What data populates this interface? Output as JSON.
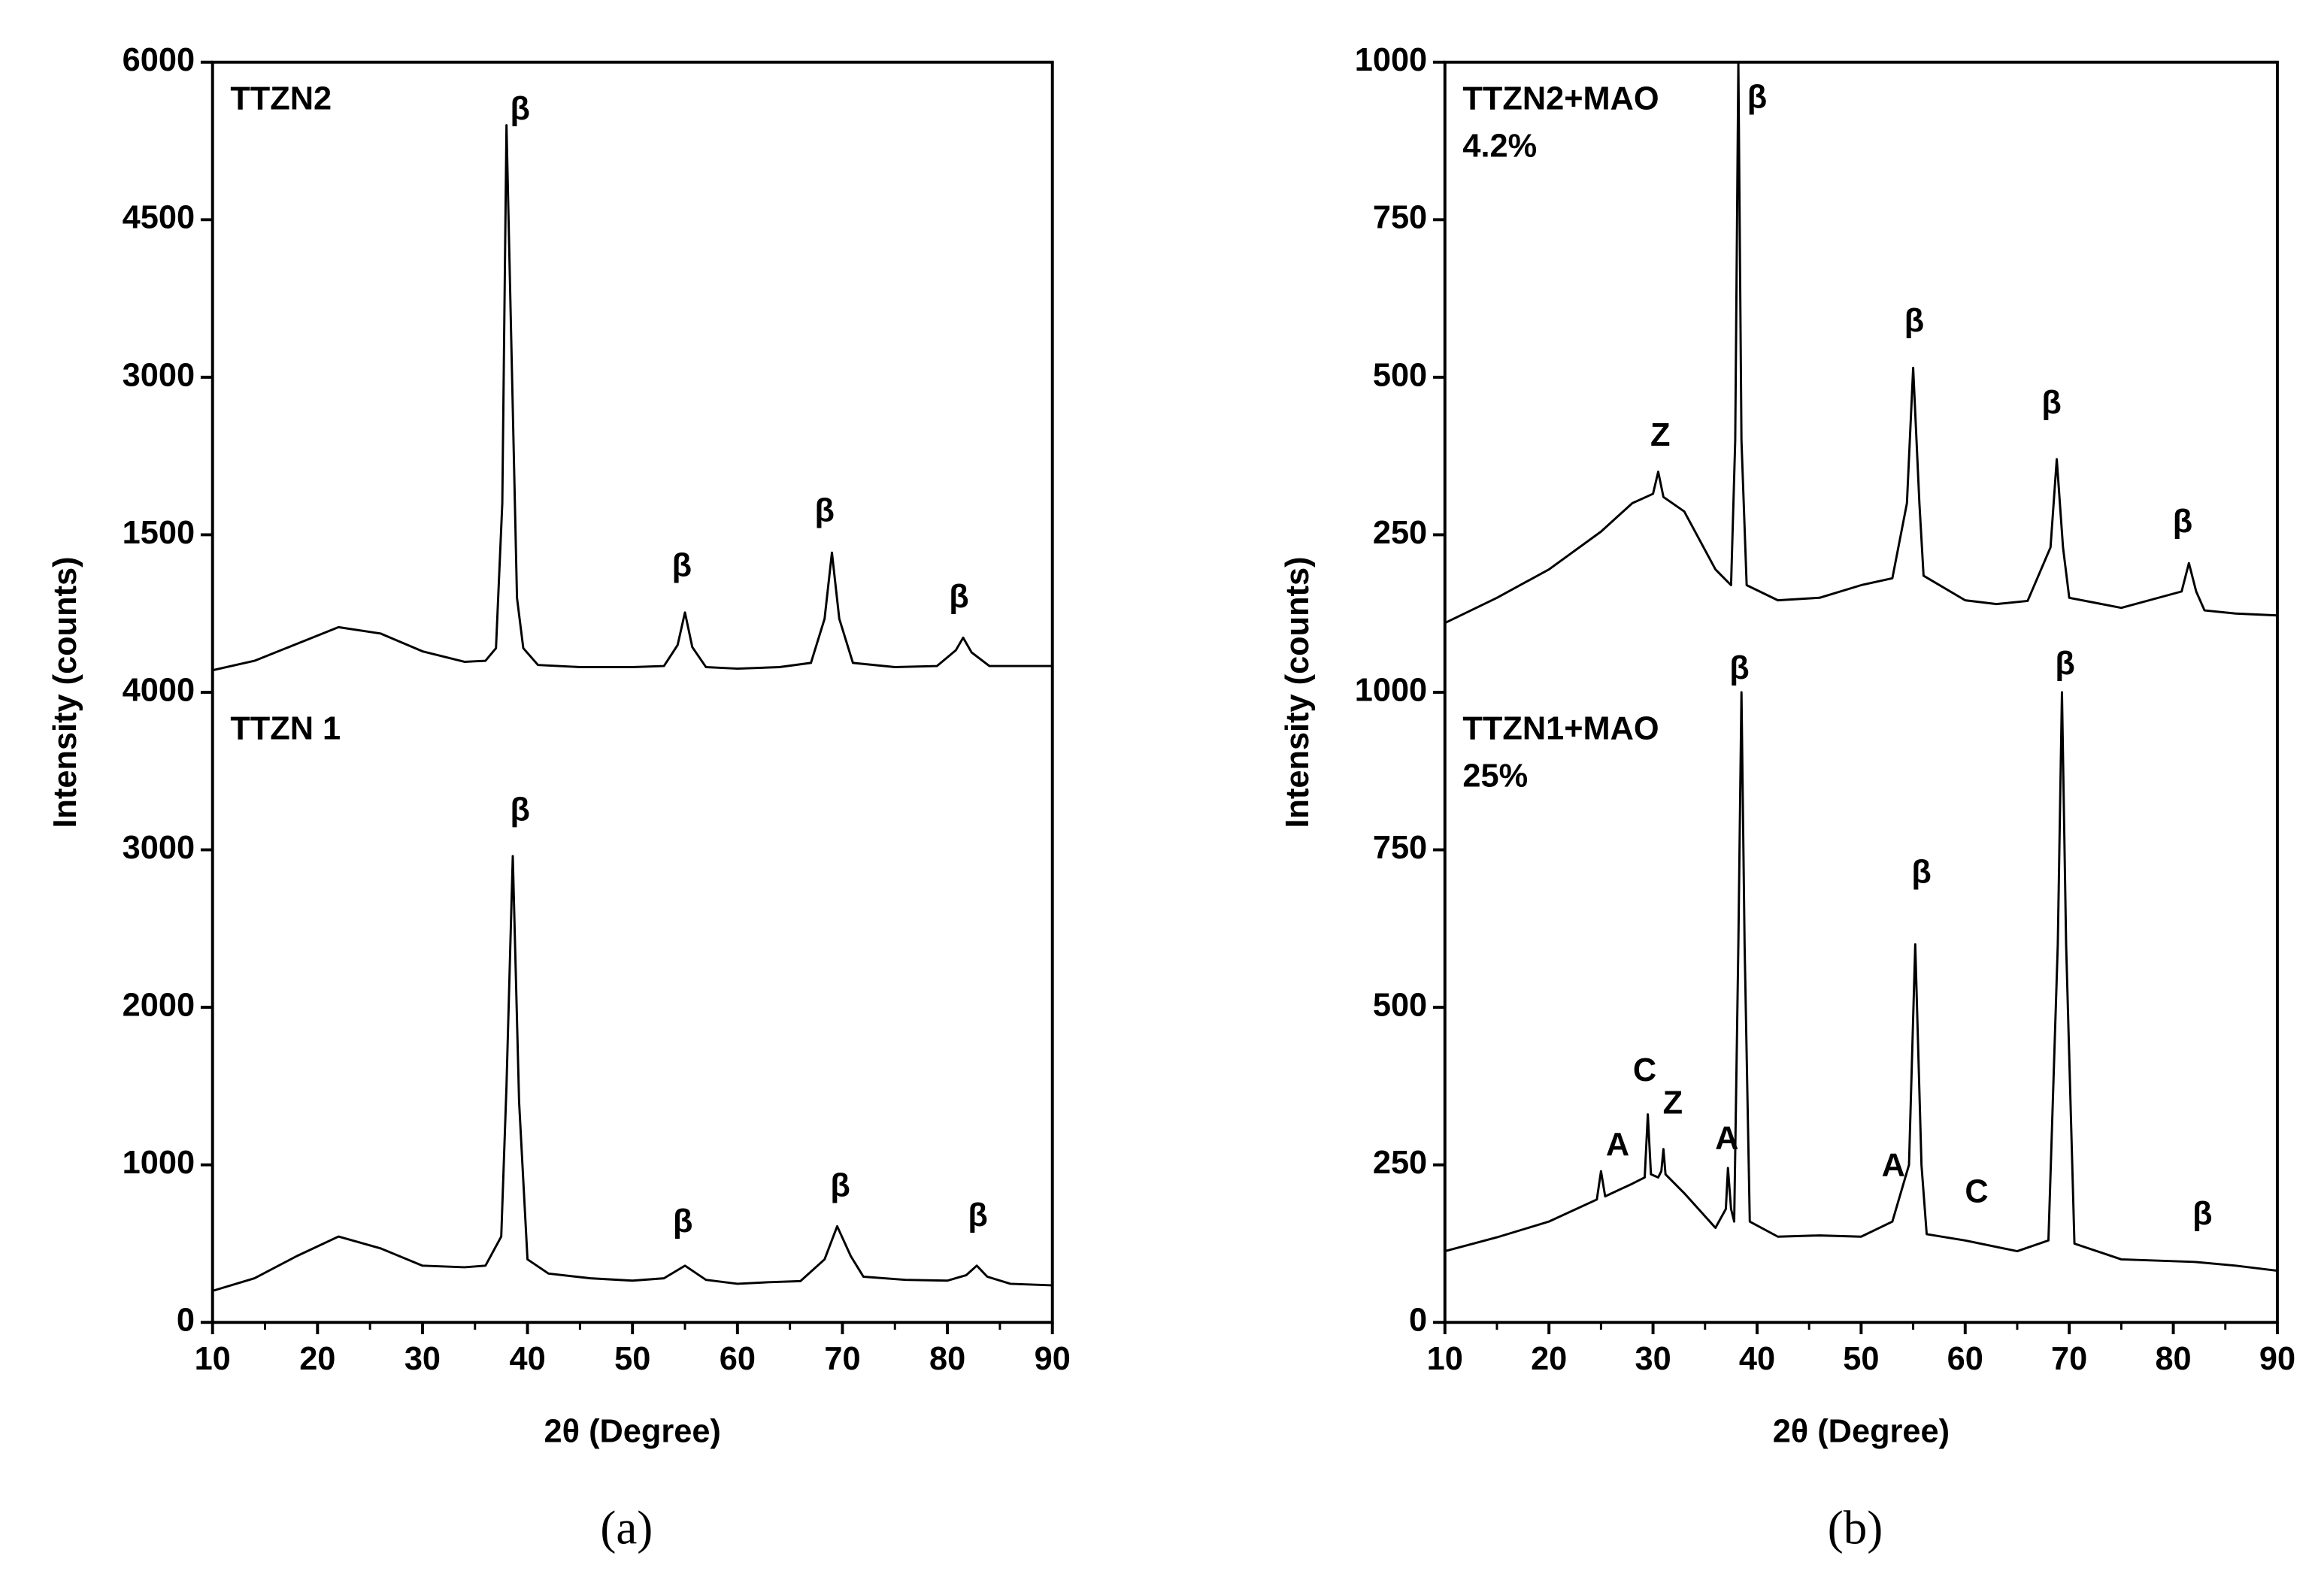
{
  "chart_data": [
    {
      "type": "line",
      "panel_label": "(a)",
      "x_label": "2θ (Degree)",
      "y_label": "Intensity (counts)",
      "xlim": [
        10,
        90
      ],
      "xticks": [
        10,
        20,
        30,
        40,
        50,
        60,
        70,
        80,
        90
      ],
      "xticks_minor": [
        15,
        25,
        35,
        45,
        55,
        65,
        75,
        85
      ],
      "subplots": [
        {
          "ylim": [
            0,
            6000
          ],
          "yticks": [
            1500,
            3000,
            4500,
            6000
          ],
          "series": [
            {
              "name": "TTZN2",
              "color": "#000000",
              "x": [
                10,
                14,
                18,
                22,
                26,
                30,
                34,
                36,
                37,
                37.6,
                38,
                38.4,
                39,
                39.6,
                41,
                45,
                50,
                53,
                54.3,
                55,
                55.7,
                57,
                60,
                64,
                67,
                68.3,
                69,
                69.7,
                71,
                75,
                79,
                80.8,
                81.5,
                82.3,
                84,
                90
              ],
              "values": [
                210,
                300,
                460,
                620,
                560,
                390,
                290,
                300,
                420,
                1800,
                5400,
                3600,
                900,
                420,
                260,
                240,
                240,
                250,
                450,
                760,
                430,
                240,
                225,
                240,
                280,
                700,
                1330,
                700,
                280,
                240,
                250,
                400,
                520,
                380,
                250,
                250
              ]
            }
          ],
          "annotations": [
            {
              "text": "β",
              "x": 39.3,
              "y": 5535
            },
            {
              "text": "β",
              "x": 54.7,
              "y": 1186
            },
            {
              "text": "β",
              "x": 68.3,
              "y": 1709
            },
            {
              "text": "β",
              "x": 81.1,
              "y": 890
            }
          ]
        },
        {
          "ylim": [
            0,
            4000
          ],
          "yticks": [
            0,
            1000,
            2000,
            3000,
            {
              "value": 4000,
              "label": "4000"
            }
          ],
          "series": [
            {
              "name": "TTZN 1",
              "color": "#000000",
              "x": [
                10,
                14,
                18,
                22,
                26,
                30,
                34,
                36,
                37.5,
                38,
                38.6,
                39.2,
                40,
                42,
                46,
                50,
                53,
                55,
                57,
                60,
                63,
                66,
                68.3,
                69.5,
                70.8,
                72,
                76,
                80,
                81.8,
                82.8,
                83.8,
                86,
                90
              ],
              "values": [
                200,
                280,
                420,
                545,
                470,
                360,
                350,
                360,
                545,
                1500,
                2960,
                1400,
                400,
                310,
                280,
                265,
                280,
                360,
                270,
                245,
                255,
                262,
                400,
                610,
                420,
                290,
                270,
                265,
                300,
                360,
                290,
                245,
                235
              ]
            }
          ],
          "annotations": [
            {
              "text": "β",
              "x": 39.3,
              "y": 3240
            },
            {
              "text": "β",
              "x": 54.8,
              "y": 629
            },
            {
              "text": "β",
              "x": 69.8,
              "y": 854
            },
            {
              "text": "β",
              "x": 82.9,
              "y": 667
            }
          ]
        }
      ]
    },
    {
      "type": "line",
      "panel_label": "(b)",
      "x_label": "2θ (Degree)",
      "y_label": "Intensity (counts)",
      "xlim": [
        10,
        90
      ],
      "xticks": [
        10,
        20,
        30,
        40,
        50,
        60,
        70,
        80,
        90
      ],
      "xticks_minor": [
        15,
        25,
        35,
        45,
        55,
        65,
        75,
        85
      ],
      "subplots": [
        {
          "ylim": [
            0,
            1000
          ],
          "yticks": [
            250,
            500,
            750,
            1000
          ],
          "series": [
            {
              "name": "TTZN2+MAO",
              "subtitle": "4.2%",
              "color": "#000000",
              "x": [
                10,
                15,
                20,
                25,
                28,
                30,
                30.5,
                31,
                33,
                36,
                37.5,
                37.9,
                38.2,
                38.5,
                39,
                42,
                46,
                50,
                53,
                54.4,
                55,
                55.6,
                56,
                60,
                63,
                66,
                68.2,
                68.8,
                69.4,
                70,
                75,
                80.8,
                81.5,
                82.2,
                83,
                86,
                90
              ],
              "values": [
                110,
                150,
                195,
                255,
                300,
                315,
                350,
                310,
                287,
                195,
                170,
                400,
                1000,
                400,
                170,
                146,
                150,
                170,
                181,
                300,
                515,
                300,
                185,
                146,
                140,
                145,
                230,
                370,
                230,
                150,
                134,
                160,
                205,
                160,
                130,
                125,
                122
              ]
            }
          ],
          "annotations": [
            {
              "text": "Z",
              "x": 30.7,
              "y": 405
            },
            {
              "text": "β",
              "x": 40.0,
              "y": 941
            },
            {
              "text": "β",
              "x": 55.1,
              "y": 586
            },
            {
              "text": "β",
              "x": 68.3,
              "y": 456
            },
            {
              "text": "β",
              "x": 80.9,
              "y": 268
            }
          ]
        },
        {
          "ylim": [
            0,
            1000
          ],
          "yticks": [
            0,
            250,
            500,
            750,
            1000
          ],
          "series": [
            {
              "name": "TTZN1+MAO",
              "subtitle": "25%",
              "color": "#000000",
              "x": [
                10,
                15,
                20,
                24.6,
                25,
                25.4,
                28,
                29.2,
                29.5,
                29.8,
                30.5,
                30.8,
                31,
                31.2,
                33,
                36,
                37,
                37.2,
                37.5,
                37.8,
                38.2,
                38.5,
                38.8,
                39.3,
                42,
                46,
                50,
                53,
                54.6,
                55.2,
                55.8,
                56.3,
                60,
                65,
                68,
                68.9,
                69.3,
                69.7,
                70.5,
                75,
                82,
                86,
                90
              ],
              "values": [
                113,
                135,
                160,
                195,
                240,
                200,
                220,
                230,
                330,
                235,
                230,
                240,
                275,
                235,
                205,
                150,
                180,
                245,
                180,
                160,
                600,
                1000,
                600,
                160,
                136,
                138,
                136,
                160,
                250,
                600,
                250,
                140,
                130,
                113,
                130,
                600,
                1000,
                600,
                125,
                100,
                96,
                90,
                82
              ]
            }
          ],
          "annotations": [
            {
              "text": "β",
              "x": 38.3,
              "y": 1035
            },
            {
              "text": "A",
              "x": 26.6,
              "y": 279
            },
            {
              "text": "C",
              "x": 29.2,
              "y": 397
            },
            {
              "text": "Z",
              "x": 31.9,
              "y": 345
            },
            {
              "text": "A",
              "x": 37.1,
              "y": 289
            },
            {
              "text": "β",
              "x": 55.8,
              "y": 711
            },
            {
              "text": "A",
              "x": 53.1,
              "y": 246
            },
            {
              "text": "C",
              "x": 61.1,
              "y": 204
            },
            {
              "text": "β",
              "x": 69.6,
              "y": 1042
            },
            {
              "text": "β",
              "x": 82.8,
              "y": 169
            }
          ]
        }
      ]
    }
  ]
}
